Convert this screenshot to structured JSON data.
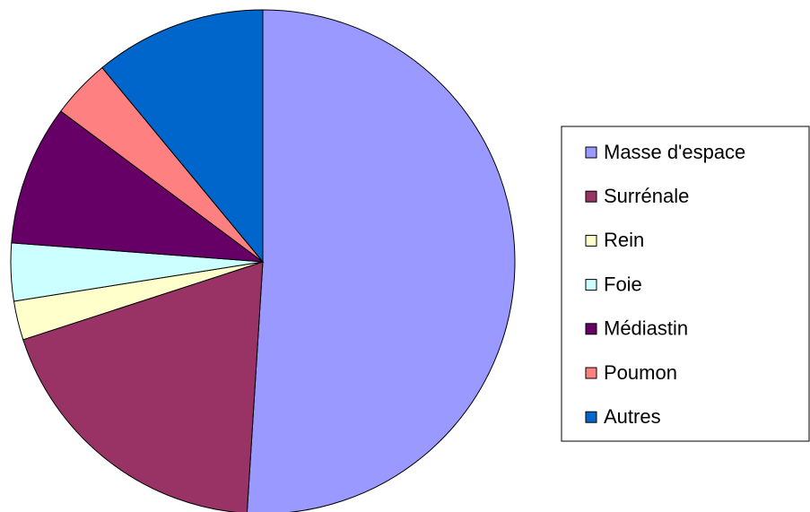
{
  "chart_data": {
    "type": "pie",
    "categories": [
      "Masse d'espace",
      "Surrénale",
      "Rein",
      "Foie",
      "Médiastin",
      "Poumon",
      "Autres"
    ],
    "values": [
      51,
      19,
      2.5,
      3.7,
      9,
      3.8,
      11
    ],
    "colors": [
      "#9999ff",
      "#993366",
      "#ffffcc",
      "#ccffff",
      "#660066",
      "#ff8080",
      "#0066cc"
    ],
    "legend": "right"
  }
}
